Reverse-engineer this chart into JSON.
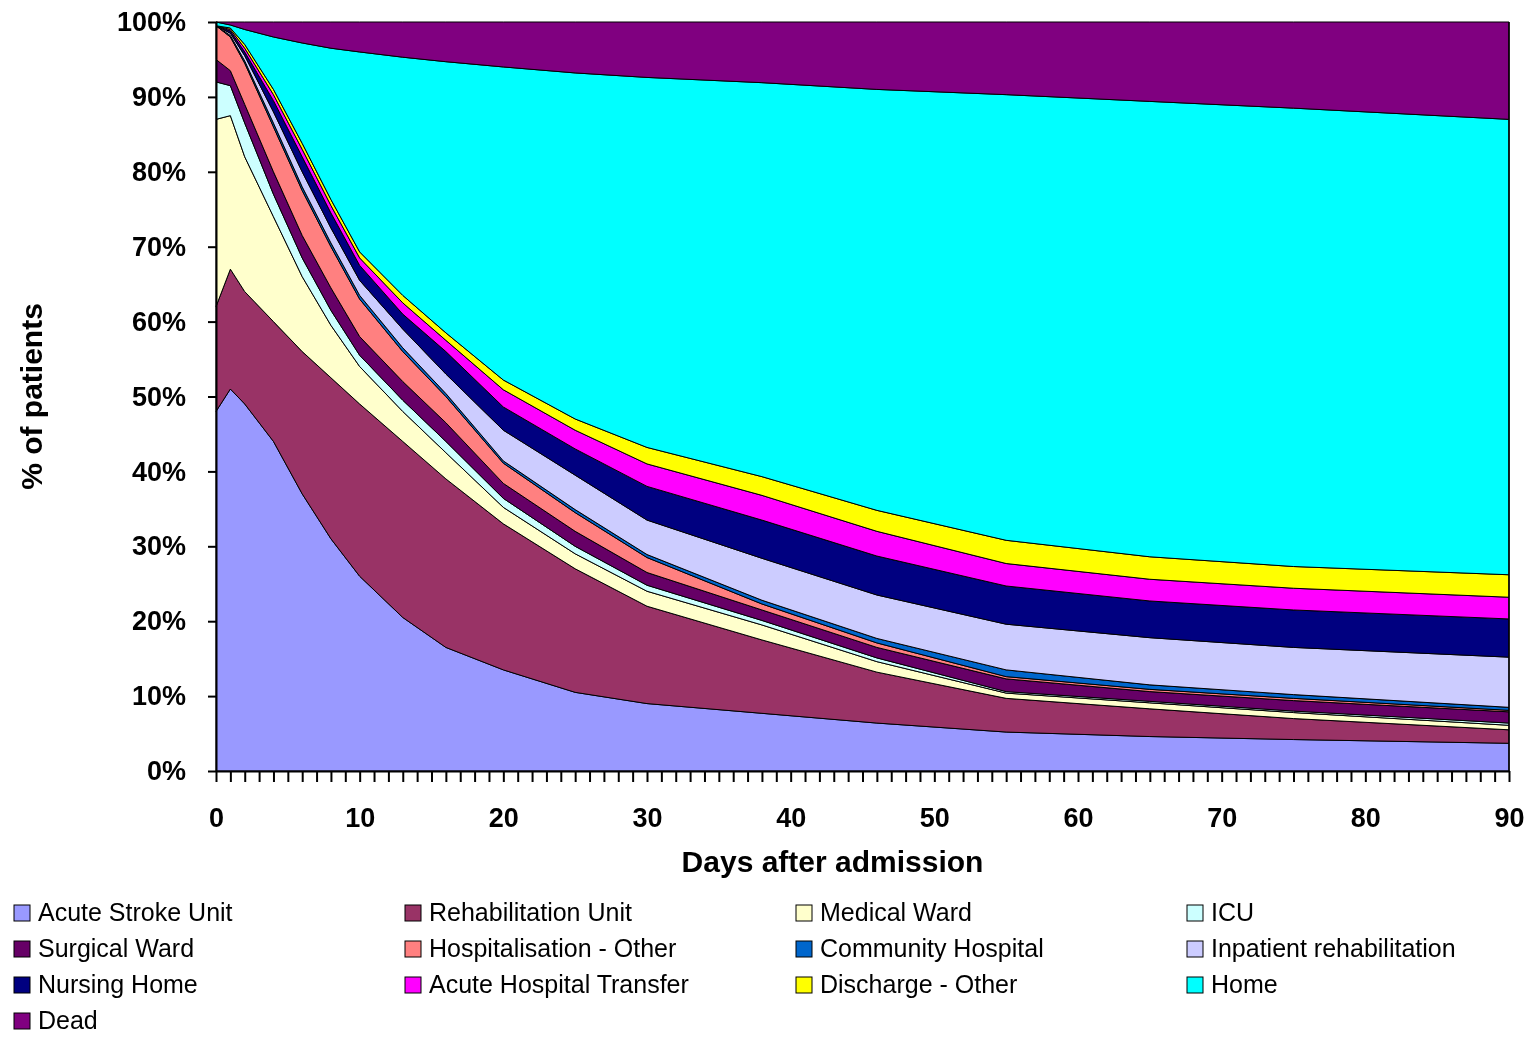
{
  "chart_data": {
    "type": "area",
    "stacked": true,
    "xlabel": "Days after admission",
    "ylabel": "% of patients",
    "legend": "bottom",
    "grid": false,
    "x": [
      0,
      1,
      2,
      4,
      6,
      8,
      10,
      13,
      16,
      20,
      25,
      30,
      38,
      46,
      55,
      65,
      75,
      90
    ],
    "xlim": [
      0,
      90
    ],
    "xticks": [
      0,
      {
        "value": 1,
        "label": null
      },
      {
        "value": 2,
        "label": null
      },
      {
        "value": 3,
        "label": null
      },
      {
        "value": 4,
        "label": null
      },
      {
        "value": 5,
        "label": null
      },
      {
        "value": 6,
        "label": null
      },
      {
        "value": 7,
        "label": null
      },
      {
        "value": 8,
        "label": null
      },
      {
        "value": 9,
        "label": null
      },
      10,
      {
        "value": 11,
        "label": null
      },
      {
        "value": 12,
        "label": null
      },
      {
        "value": 13,
        "label": null
      },
      {
        "value": 14,
        "label": null
      },
      {
        "value": 15,
        "label": null
      },
      {
        "value": 16,
        "label": null
      },
      {
        "value": 17,
        "label": null
      },
      {
        "value": 18,
        "label": null
      },
      {
        "value": 19,
        "label": null
      },
      20,
      {
        "value": 21,
        "label": null
      },
      {
        "value": 22,
        "label": null
      },
      {
        "value": 23,
        "label": null
      },
      {
        "value": 24,
        "label": null
      },
      {
        "value": 25,
        "label": null
      },
      {
        "value": 26,
        "label": null
      },
      {
        "value": 27,
        "label": null
      },
      {
        "value": 28,
        "label": null
      },
      {
        "value": 29,
        "label": null
      },
      30,
      {
        "value": 31,
        "label": null
      },
      {
        "value": 32,
        "label": null
      },
      {
        "value": 33,
        "label": null
      },
      {
        "value": 34,
        "label": null
      },
      {
        "value": 35,
        "label": null
      },
      {
        "value": 36,
        "label": null
      },
      {
        "value": 37,
        "label": null
      },
      {
        "value": 38,
        "label": null
      },
      {
        "value": 39,
        "label": null
      },
      40,
      {
        "value": 41,
        "label": null
      },
      {
        "value": 42,
        "label": null
      },
      {
        "value": 43,
        "label": null
      },
      {
        "value": 44,
        "label": null
      },
      {
        "value": 45,
        "label": null
      },
      {
        "value": 46,
        "label": null
      },
      {
        "value": 47,
        "label": null
      },
      {
        "value": 48,
        "label": null
      },
      {
        "value": 49,
        "label": null
      },
      50,
      {
        "value": 51,
        "label": null
      },
      {
        "value": 52,
        "label": null
      },
      {
        "value": 53,
        "label": null
      },
      {
        "value": 54,
        "label": null
      },
      {
        "value": 55,
        "label": null
      },
      {
        "value": 56,
        "label": null
      },
      {
        "value": 57,
        "label": null
      },
      {
        "value": 58,
        "label": null
      },
      {
        "value": 59,
        "label": null
      },
      60,
      {
        "value": 61,
        "label": null
      },
      {
        "value": 62,
        "label": null
      },
      {
        "value": 63,
        "label": null
      },
      {
        "value": 64,
        "label": null
      },
      {
        "value": 65,
        "label": null
      },
      {
        "value": 66,
        "label": null
      },
      {
        "value": 67,
        "label": null
      },
      {
        "value": 68,
        "label": null
      },
      {
        "value": 69,
        "label": null
      },
      70,
      {
        "value": 71,
        "label": null
      },
      {
        "value": 72,
        "label": null
      },
      {
        "value": 73,
        "label": null
      },
      {
        "value": 74,
        "label": null
      },
      {
        "value": 75,
        "label": null
      },
      {
        "value": 76,
        "label": null
      },
      {
        "value": 77,
        "label": null
      },
      {
        "value": 78,
        "label": null
      },
      {
        "value": 79,
        "label": null
      },
      80,
      {
        "value": 81,
        "label": null
      },
      {
        "value": 82,
        "label": null
      },
      {
        "value": 83,
        "label": null
      },
      {
        "value": 84,
        "label": null
      },
      {
        "value": 85,
        "label": null
      },
      {
        "value": 86,
        "label": null
      },
      {
        "value": 87,
        "label": null
      },
      {
        "value": 88,
        "label": null
      },
      {
        "value": 89,
        "label": null
      },
      90
    ],
    "ylim": [
      0,
      100
    ],
    "yticks": [
      {
        "value": 0,
        "label": "0%"
      },
      {
        "value": 10,
        "label": "10%"
      },
      {
        "value": 20,
        "label": "20%"
      },
      {
        "value": 30,
        "label": "30%"
      },
      {
        "value": 40,
        "label": "40%"
      },
      {
        "value": 50,
        "label": "50%"
      },
      {
        "value": 60,
        "label": "60%"
      },
      {
        "value": 70,
        "label": "70%"
      },
      {
        "value": 80,
        "label": "80%"
      },
      {
        "value": 90,
        "label": "90%"
      },
      {
        "value": 100,
        "label": "100%"
      }
    ],
    "series": [
      {
        "name": "Acute Stroke Unit",
        "color": "#9999ff",
        "values": [
          48,
          51,
          49,
          44,
          37,
          31,
          26,
          20.5,
          16.5,
          13.5,
          10.5,
          9,
          7.7,
          6.4,
          5.2,
          4.6,
          4.2,
          3.7
        ]
      },
      {
        "name": "Rehabilitation Unit",
        "color": "#993366",
        "values": [
          14,
          16,
          15,
          16,
          19,
          21.5,
          23,
          23.5,
          22.5,
          19.5,
          16.5,
          13,
          9.8,
          6.8,
          4.5,
          3.7,
          2.8,
          1.8
        ]
      },
      {
        "name": "Medical Ward",
        "color": "#ffffcc",
        "values": [
          25,
          20.5,
          18,
          14,
          10,
          7,
          5,
          4,
          3.5,
          2.2,
          2,
          2,
          2,
          1.4,
          0.7,
          0.8,
          0.8,
          0.6
        ]
      },
      {
        "name": "ICU",
        "color": "#ccffff",
        "values": [
          5,
          4,
          4.5,
          3,
          2.5,
          2,
          1.5,
          1.5,
          1.5,
          1.2,
          1,
          0.8,
          0.6,
          0.5,
          0.2,
          0.2,
          0.2,
          0.3
        ]
      },
      {
        "name": "Surgical Ward",
        "color": "#660066",
        "values": [
          3,
          2,
          2.5,
          3,
          3,
          3,
          2.5,
          2.5,
          2.5,
          2,
          2,
          1.7,
          1.4,
          1.4,
          1.7,
          1.3,
          1.4,
          1.5
        ]
      },
      {
        "name": "Hospitalisation - Other",
        "color": "#ff8080",
        "values": [
          4.5,
          4.5,
          5.5,
          6,
          6,
          5.5,
          5,
          4,
          3.5,
          2.7,
          2.5,
          2,
          0.8,
          0.6,
          0.3,
          0.3,
          0.3,
          0.2
        ]
      },
      {
        "name": "Community Hospital",
        "color": "#0066cc",
        "values": [
          0,
          0.2,
          0.3,
          0.5,
          0.5,
          0.5,
          0.5,
          0.5,
          0.4,
          0.3,
          0.4,
          0.4,
          0.5,
          0.6,
          0.9,
          0.6,
          0.5,
          0.4
        ]
      },
      {
        "name": "Inpatient rehabilitation",
        "color": "#ccccff",
        "values": [
          0,
          0.3,
          0.7,
          1.5,
          2,
          2,
          2,
          2.5,
          2.6,
          4.1,
          4.6,
          4.6,
          5.6,
          5.8,
          6.1,
          6.3,
          6.3,
          6.7
        ]
      },
      {
        "name": "Nursing Home",
        "color": "#000080",
        "values": [
          0,
          0.3,
          0.5,
          1.5,
          2,
          2,
          2,
          2,
          3,
          3.1,
          3.5,
          4.5,
          5.1,
          5.2,
          5.1,
          4.9,
          5,
          5.1
        ]
      },
      {
        "name": "Acute Hospital Transfer",
        "color": "#ff00ff",
        "values": [
          0,
          0.2,
          0.5,
          0.8,
          1,
          1,
          1,
          1.5,
          1.5,
          2.3,
          2.5,
          3,
          3.3,
          3.3,
          3,
          2.9,
          2.9,
          2.9
        ]
      },
      {
        "name": "Discharge - Other",
        "color": "#ffff00",
        "values": [
          0,
          0.2,
          0.5,
          0.7,
          0.8,
          0.8,
          0.8,
          1,
          1,
          1.3,
          1.5,
          2.2,
          2.5,
          2.8,
          3.1,
          3,
          2.9,
          3
        ]
      },
      {
        "name": "Home",
        "color": "#00ffff",
        "values": [
          0.5,
          0.4,
          2,
          7,
          13.4,
          20.2,
          26.7,
          31.8,
          36.2,
          41.8,
          46.2,
          49.4,
          52.6,
          56.2,
          59.5,
          60.8,
          61.2,
          60.8
        ]
      },
      {
        "name": "Dead",
        "color": "#800080",
        "values": [
          0,
          0.4,
          1,
          2,
          2.8,
          3.5,
          4,
          4.7,
          5.3,
          6,
          6.8,
          7.4,
          8.1,
          9,
          9.7,
          10.6,
          11.5,
          13
        ]
      }
    ]
  }
}
